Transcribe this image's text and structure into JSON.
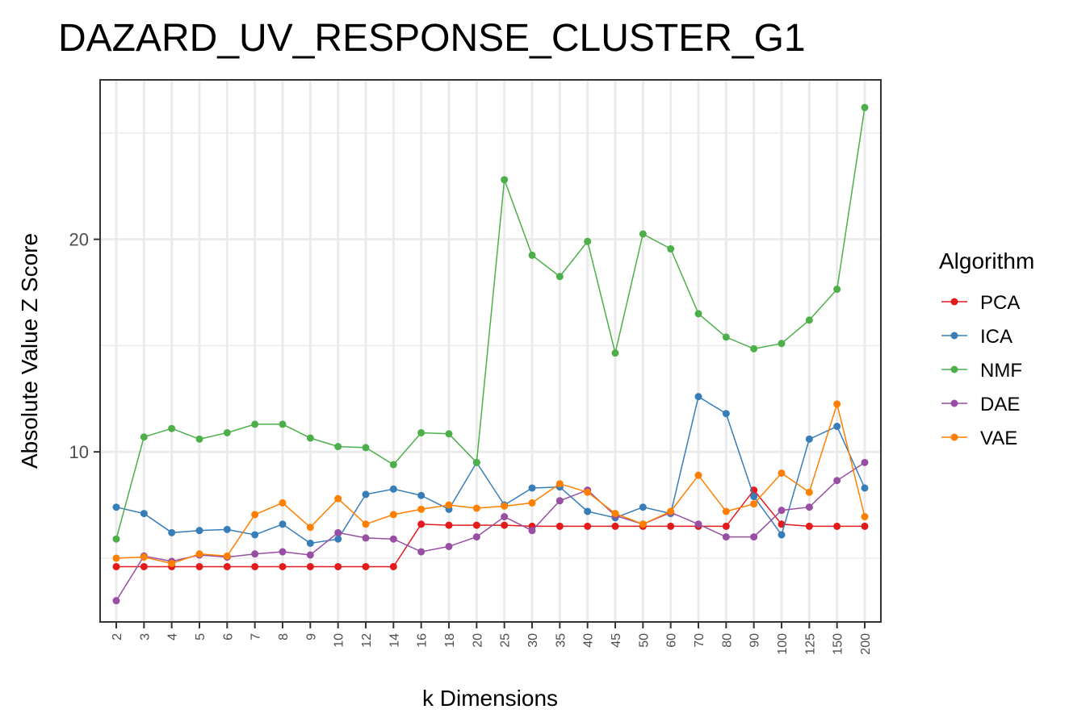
{
  "chart_data": {
    "type": "line",
    "title": "DAZARD_UV_RESPONSE_CLUSTER_G1",
    "xlabel": "k Dimensions",
    "ylabel": "Absolute Value Z Score",
    "ylim": [
      2.0,
      27.5
    ],
    "yticks": [
      10,
      20
    ],
    "grid": true,
    "legend_title": "Algorithm",
    "legend_position": "right",
    "categories": [
      "2",
      "3",
      "4",
      "5",
      "6",
      "7",
      "8",
      "9",
      "10",
      "12",
      "14",
      "16",
      "18",
      "20",
      "25",
      "30",
      "35",
      "40",
      "45",
      "50",
      "60",
      "70",
      "80",
      "90",
      "100",
      "125",
      "150",
      "200"
    ],
    "series": [
      {
        "name": "PCA",
        "color": "#e41a1c",
        "values": [
          4.6,
          4.6,
          4.6,
          4.6,
          4.6,
          4.6,
          4.6,
          4.6,
          4.6,
          4.6,
          4.6,
          6.6,
          6.55,
          6.55,
          6.55,
          6.5,
          6.5,
          6.5,
          6.5,
          6.5,
          6.5,
          6.5,
          6.5,
          8.2,
          6.6,
          6.5,
          6.5,
          6.5
        ]
      },
      {
        "name": "ICA",
        "color": "#377eb8",
        "values": [
          7.4,
          7.1,
          6.2,
          6.3,
          6.35,
          6.1,
          6.6,
          5.7,
          5.9,
          8.0,
          8.25,
          7.95,
          7.3,
          9.5,
          7.5,
          8.3,
          8.35,
          7.2,
          6.9,
          7.4,
          7.1,
          12.6,
          11.8,
          7.9,
          6.1,
          10.6,
          11.2,
          8.3
        ]
      },
      {
        "name": "NMF",
        "color": "#4daf4a",
        "values": [
          5.9,
          10.7,
          11.1,
          10.6,
          10.9,
          11.3,
          11.3,
          10.65,
          10.25,
          10.2,
          9.4,
          10.9,
          10.85,
          9.5,
          22.8,
          19.25,
          18.25,
          19.9,
          14.65,
          20.25,
          19.55,
          16.5,
          15.4,
          14.85,
          15.1,
          16.2,
          17.65,
          26.2
        ]
      },
      {
        "name": "DAE",
        "color": "#984ea3",
        "values": [
          3.0,
          5.1,
          4.85,
          5.15,
          5.05,
          5.2,
          5.3,
          5.15,
          6.2,
          5.95,
          5.9,
          5.3,
          5.55,
          6.0,
          6.95,
          6.3,
          7.7,
          8.2,
          7.0,
          6.6,
          7.15,
          6.6,
          6.0,
          6.0,
          7.25,
          7.4,
          8.65,
          9.5
        ]
      },
      {
        "name": "VAE",
        "color": "#ff7f00",
        "values": [
          5.0,
          5.05,
          4.75,
          5.2,
          5.1,
          7.05,
          7.6,
          6.45,
          7.8,
          6.6,
          7.05,
          7.3,
          7.5,
          7.35,
          7.45,
          7.6,
          8.5,
          8.1,
          7.1,
          6.6,
          7.2,
          8.9,
          7.2,
          7.55,
          9.0,
          8.1,
          12.25,
          6.95
        ]
      }
    ]
  }
}
